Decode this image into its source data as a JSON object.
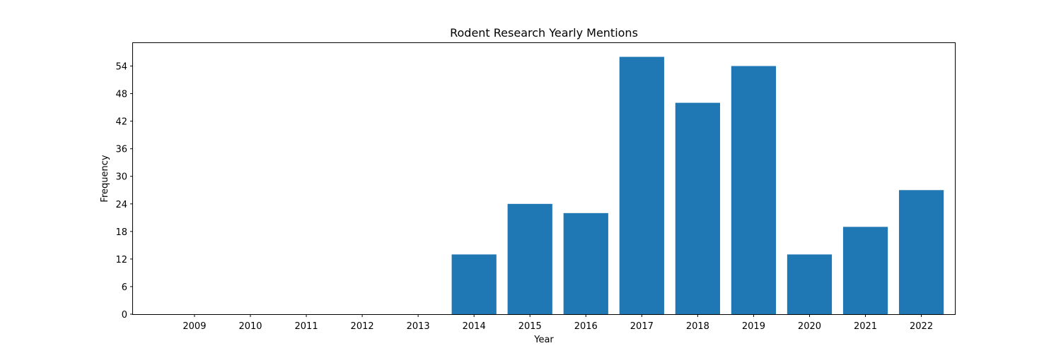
{
  "chart_data": {
    "type": "bar",
    "title": "Rodent Research Yearly Mentions",
    "xlabel": "Year",
    "ylabel": "Frequency",
    "categories": [
      "2009",
      "2010",
      "2011",
      "2012",
      "2013",
      "2014",
      "2015",
      "2016",
      "2017",
      "2018",
      "2019",
      "2020",
      "2021",
      "2022"
    ],
    "values": [
      0,
      0,
      0,
      0,
      0,
      13,
      24,
      22,
      56,
      46,
      54,
      13,
      19,
      27
    ],
    "yticks": [
      0,
      6,
      12,
      18,
      24,
      30,
      36,
      42,
      48,
      54
    ],
    "ylim": [
      0,
      59
    ],
    "grid": false,
    "bar_color": "#1f77b4"
  }
}
